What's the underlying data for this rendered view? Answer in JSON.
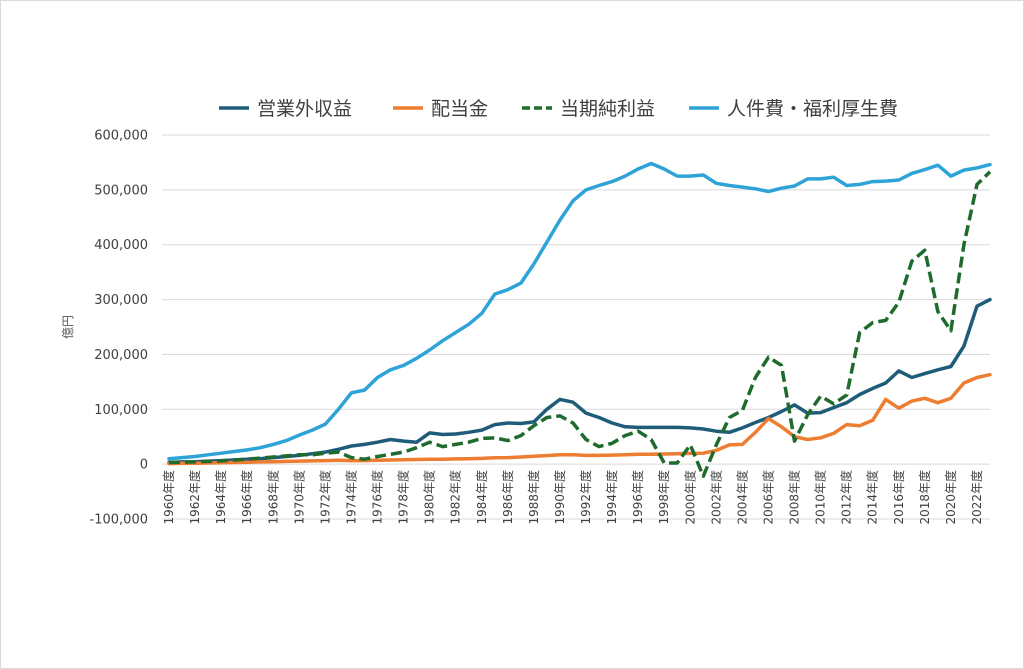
{
  "chart_data": {
    "type": "line",
    "title": "",
    "xlabel": "",
    "ylabel": "億円",
    "ylim": [
      -100000,
      600000
    ],
    "yticks": [
      -100000,
      0,
      100000,
      200000,
      300000,
      400000,
      500000,
      600000
    ],
    "ytick_labels": [
      "-100,000",
      "0",
      "100,000",
      "200,000",
      "300,000",
      "400,000",
      "500,000",
      "600,000"
    ],
    "grid": true,
    "legend_position": "top",
    "x": [
      1960,
      1961,
      1962,
      1963,
      1964,
      1965,
      1966,
      1967,
      1968,
      1969,
      1970,
      1971,
      1972,
      1973,
      1974,
      1975,
      1976,
      1977,
      1978,
      1979,
      1980,
      1981,
      1982,
      1983,
      1984,
      1985,
      1986,
      1987,
      1988,
      1989,
      1990,
      1991,
      1992,
      1993,
      1994,
      1995,
      1996,
      1997,
      1998,
      1999,
      2000,
      2001,
      2002,
      2003,
      2004,
      2005,
      2006,
      2007,
      2008,
      2009,
      2010,
      2011,
      2012,
      2013,
      2014,
      2015,
      2016,
      2017,
      2018,
      2019,
      2020,
      2021,
      2022,
      2023
    ],
    "x_tick_labels": [
      "1960年度",
      "1962年度",
      "1964年度",
      "1966年度",
      "1968年度",
      "1970年度",
      "1972年度",
      "1974年度",
      "1976年度",
      "1978年度",
      "1980年度",
      "1982年度",
      "1984年度",
      "1986年度",
      "1988年度",
      "1990年度",
      "1992年度",
      "1994年度",
      "1996年度",
      "1998年度",
      "2000年度",
      "2002年度",
      "2004年度",
      "2006年度",
      "2008年度",
      "2010年度",
      "2012年度",
      "2014年度",
      "2016年度",
      "2018年度",
      "2020年度",
      "2022年度"
    ],
    "series": [
      {
        "name": "営業外収益",
        "color": "#1f5c7a",
        "dash": "solid",
        "values": [
          3000,
          4000,
          4500,
          5500,
          6500,
          7500,
          9000,
          10000,
          12000,
          14000,
          16000,
          19000,
          22000,
          27000,
          33000,
          36000,
          40000,
          45000,
          42000,
          40000,
          57000,
          54000,
          55000,
          58000,
          62000,
          72000,
          75000,
          74000,
          77000,
          100000,
          118000,
          113000,
          93000,
          85000,
          75000,
          68000,
          67000,
          67000,
          67000,
          67000,
          66000,
          64000,
          60000,
          58000,
          66000,
          76000,
          85000,
          96000,
          108000,
          93000,
          94000,
          103000,
          112000,
          127000,
          138000,
          148000,
          170000,
          158000,
          165000,
          172000,
          178000,
          215000,
          288000,
          300000
        ]
      },
      {
        "name": "配当金",
        "color": "#ed7d31",
        "dash": "solid",
        "values": [
          1000,
          1300,
          1600,
          2000,
          2500,
          3000,
          3500,
          4000,
          4500,
          5000,
          5500,
          6000,
          6500,
          7000,
          6500,
          6500,
          7000,
          7500,
          8000,
          8500,
          9000,
          9000,
          9500,
          10000,
          10500,
          11500,
          12000,
          13000,
          14500,
          15500,
          17000,
          17000,
          16000,
          16000,
          16500,
          17000,
          18000,
          18000,
          18500,
          19000,
          19500,
          20000,
          25000,
          35000,
          36000,
          58000,
          83000,
          68000,
          50000,
          45000,
          48000,
          56000,
          72000,
          70000,
          80000,
          118000,
          102000,
          115000,
          120000,
          112000,
          120000,
          148000,
          158000,
          163000
        ]
      },
      {
        "name": "当期純利益",
        "color": "#1e6b2d",
        "dash": "dashed",
        "values": [
          3000,
          3500,
          4000,
          5000,
          6000,
          7500,
          9000,
          11000,
          13000,
          15000,
          17000,
          17000,
          20000,
          22000,
          12000,
          9000,
          14000,
          18000,
          22000,
          30000,
          40000,
          32000,
          36000,
          40000,
          47000,
          48000,
          43000,
          52000,
          70000,
          85000,
          88000,
          75000,
          45000,
          32000,
          38000,
          52000,
          60000,
          45000,
          2000,
          2000,
          35000,
          -22000,
          35000,
          85000,
          98000,
          158000,
          195000,
          180000,
          42000,
          90000,
          124000,
          110000,
          126000,
          240000,
          258000,
          262000,
          295000,
          370000,
          390000,
          278000,
          243000,
          400000,
          510000,
          533000
        ]
      },
      {
        "name": "人件費・福利厚生費",
        "color": "#2ea3d8",
        "dash": "solid",
        "values": [
          10000,
          12000,
          14000,
          17000,
          20000,
          23000,
          26000,
          30000,
          36000,
          43000,
          53000,
          62000,
          73000,
          100000,
          130000,
          135000,
          158000,
          172000,
          180000,
          193000,
          208000,
          225000,
          240000,
          255000,
          275000,
          310000,
          318000,
          330000,
          365000,
          405000,
          445000,
          480000,
          500000,
          508000,
          515000,
          525000,
          538000,
          548000,
          538000,
          525000,
          525000,
          527000,
          512000,
          508000,
          505000,
          502000,
          497000,
          503000,
          507000,
          520000,
          520000,
          523000,
          508000,
          510000,
          515000,
          516000,
          518000,
          530000,
          537000,
          545000,
          525000,
          536000,
          540000,
          546000
        ]
      }
    ]
  }
}
